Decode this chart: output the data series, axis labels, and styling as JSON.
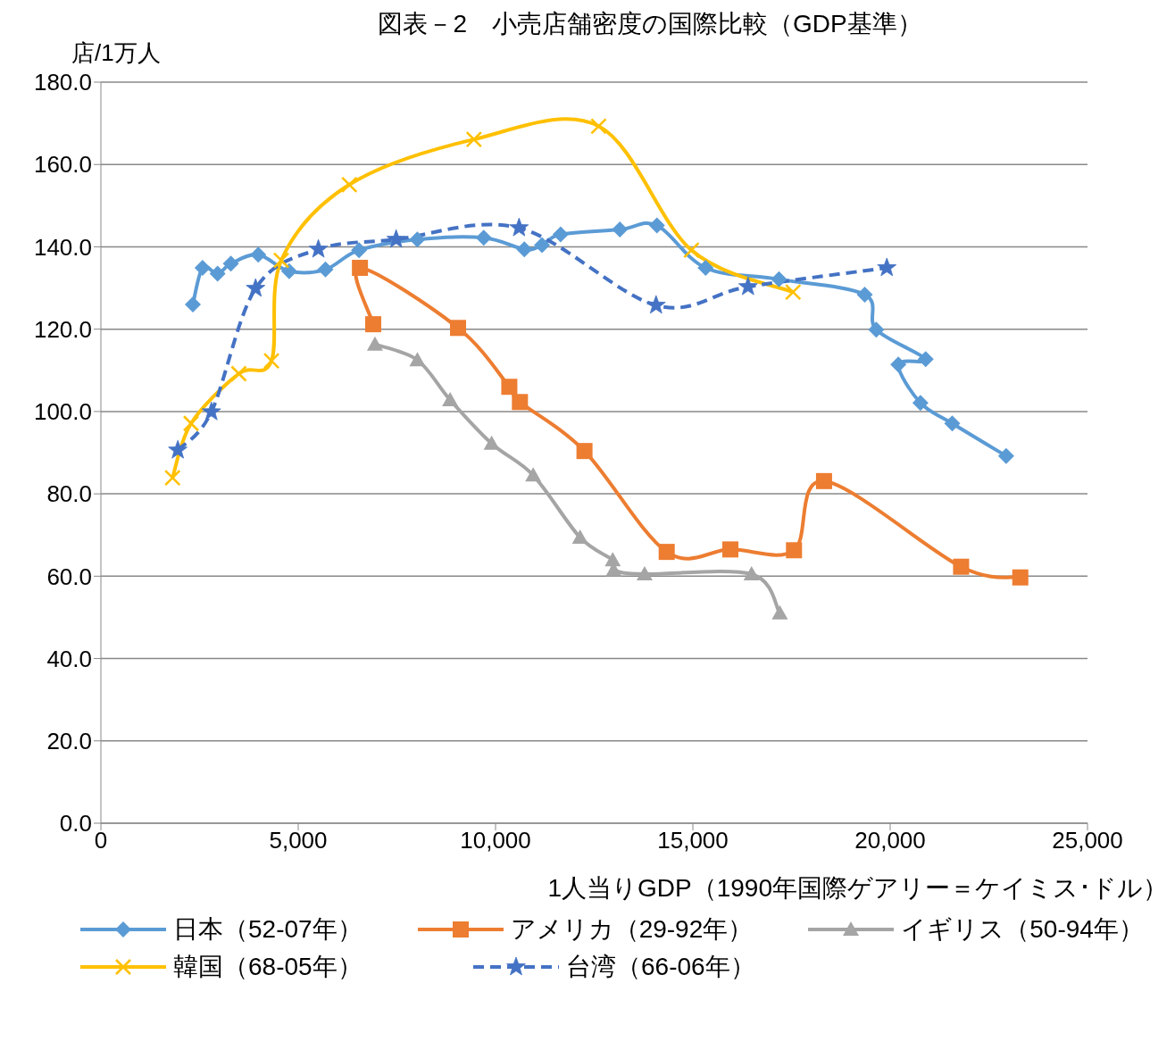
{
  "chart_data": {
    "type": "line",
    "title": "図表－2　小売店舗密度の国際比較（GDP基準）",
    "xlabel": "1人当りGDP（1990年国際ゲアリー＝ケイミス･ドル）",
    "ylabel": "店/1万人",
    "xlim": [
      0,
      25000
    ],
    "xticks": [
      {
        "value": 0,
        "label": "0"
      },
      {
        "value": 5000,
        "label": "5,000"
      },
      {
        "value": 10000,
        "label": "10,000"
      },
      {
        "value": 15000,
        "label": "15,000"
      },
      {
        "value": 20000,
        "label": "20,000"
      },
      {
        "value": 25000,
        "label": "25,000"
      }
    ],
    "ylim": [
      0,
      180
    ],
    "yticks": [
      {
        "value": 0,
        "label": "0.0"
      },
      {
        "value": 20,
        "label": "20.0"
      },
      {
        "value": 40,
        "label": "40.0"
      },
      {
        "value": 60,
        "label": "60.0"
      },
      {
        "value": 80,
        "label": "80.0"
      },
      {
        "value": 100,
        "label": "100.0"
      },
      {
        "value": 120,
        "label": "120.0"
      },
      {
        "value": 140,
        "label": "140.0"
      },
      {
        "value": 160,
        "label": "160.0"
      },
      {
        "value": 180,
        "label": "180.0"
      }
    ],
    "grid": "y",
    "legend": "bottom",
    "series": [
      {
        "name": "日本（52-07年）",
        "color": "#5b9bd5",
        "marker": "diamond",
        "line_style": "solid",
        "x": [
          2330,
          2576,
          2957,
          3293,
          3987,
          4771,
          5690,
          6541,
          8017,
          9700,
          10730,
          11178,
          11649,
          13150,
          14090,
          15323,
          17182,
          19355,
          19646,
          20900,
          20206,
          20766,
          21573,
          22939
        ],
        "values": [
          126.0,
          134.9,
          133.5,
          135.9,
          138.1,
          134.1,
          134.5,
          139.2,
          141.8,
          142.2,
          139.4,
          140.4,
          143.0,
          144.2,
          145.2,
          134.9,
          132.1,
          128.4,
          119.9,
          112.7,
          111.4,
          102.1,
          97.1,
          89.2
        ]
      },
      {
        "name": "アメリカ（29-92年）",
        "color": "#ed7d31",
        "marker": "square",
        "line_style": "solid",
        "x": [
          6900,
          6564,
          9050,
          10349,
          10618,
          12254,
          14337,
          15950,
          17563,
          18324,
          21797,
          23297
        ],
        "values": [
          121.2,
          134.9,
          120.3,
          106.0,
          102.3,
          90.4,
          65.9,
          66.5,
          66.3,
          83.1,
          62.3,
          59.7
        ]
      },
      {
        "name": "イギリス（50-94年）",
        "color": "#a5a5a5",
        "marker": "triangle",
        "line_style": "solid",
        "x": [
          6944,
          8020,
          8849,
          9901,
          10954,
          12142,
          12970,
          12993,
          13777,
          16487,
          17204
        ],
        "values": [
          116.3,
          112.5,
          102.8,
          92.2,
          84.5,
          69.4,
          63.9,
          61.5,
          60.5,
          60.5,
          51.0
        ]
      },
      {
        "name": "韓国（68-05年）",
        "color": "#ffc000",
        "marker": "cross",
        "line_style": "solid",
        "x": [
          1815,
          2285,
          3495,
          4323,
          4570,
          6295,
          9453,
          12612,
          14964,
          17540
        ],
        "values": [
          83.9,
          97.1,
          109.2,
          112.3,
          136.7,
          155.1,
          166.1,
          169.3,
          139.2,
          129.0
        ]
      },
      {
        "name": "台湾（66-06年）",
        "color": "#4472c4",
        "marker": "star",
        "line_style": "dashed",
        "x": [
          1949,
          2800,
          3920,
          5511,
          7482,
          10596,
          14068,
          16398,
          19915
        ],
        "values": [
          90.6,
          99.9,
          129.9,
          139.4,
          141.8,
          144.6,
          125.8,
          130.3,
          134.9
        ]
      }
    ]
  }
}
